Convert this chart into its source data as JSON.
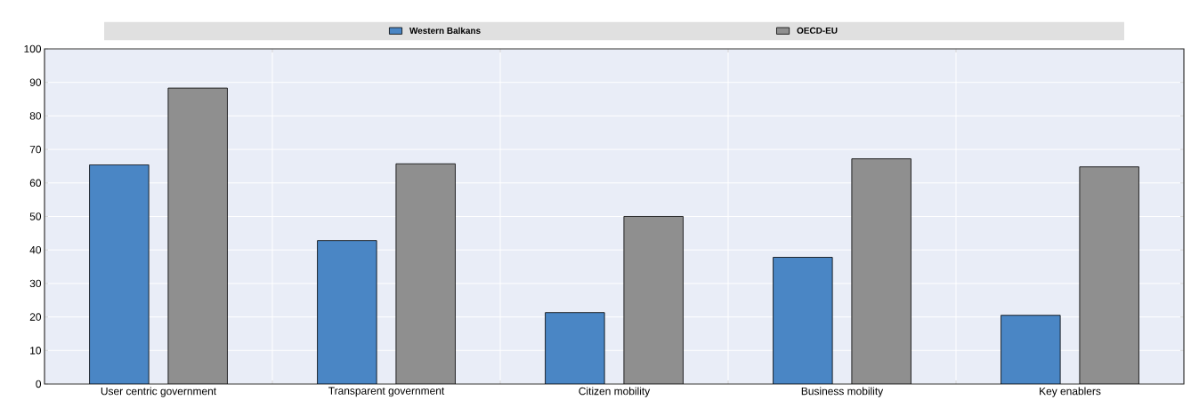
{
  "chart_data": {
    "type": "bar",
    "categories": [
      "User centric government",
      "Transparent government",
      "Citizen mobility",
      "Business mobility",
      "Key enablers"
    ],
    "series": [
      {
        "name": "Western Balkans",
        "color": "#4a86c5",
        "values": [
          65.4,
          42.8,
          21.3,
          37.8,
          20.5
        ]
      },
      {
        "name": "OECD-EU",
        "color": "#8f8f8f",
        "values": [
          88.3,
          65.7,
          50.0,
          67.2,
          64.8
        ]
      }
    ],
    "ylim": [
      0,
      100
    ],
    "yticks": [
      0,
      10,
      20,
      30,
      40,
      50,
      60,
      70,
      80,
      90,
      100
    ],
    "grid": true,
    "legend": "top"
  }
}
